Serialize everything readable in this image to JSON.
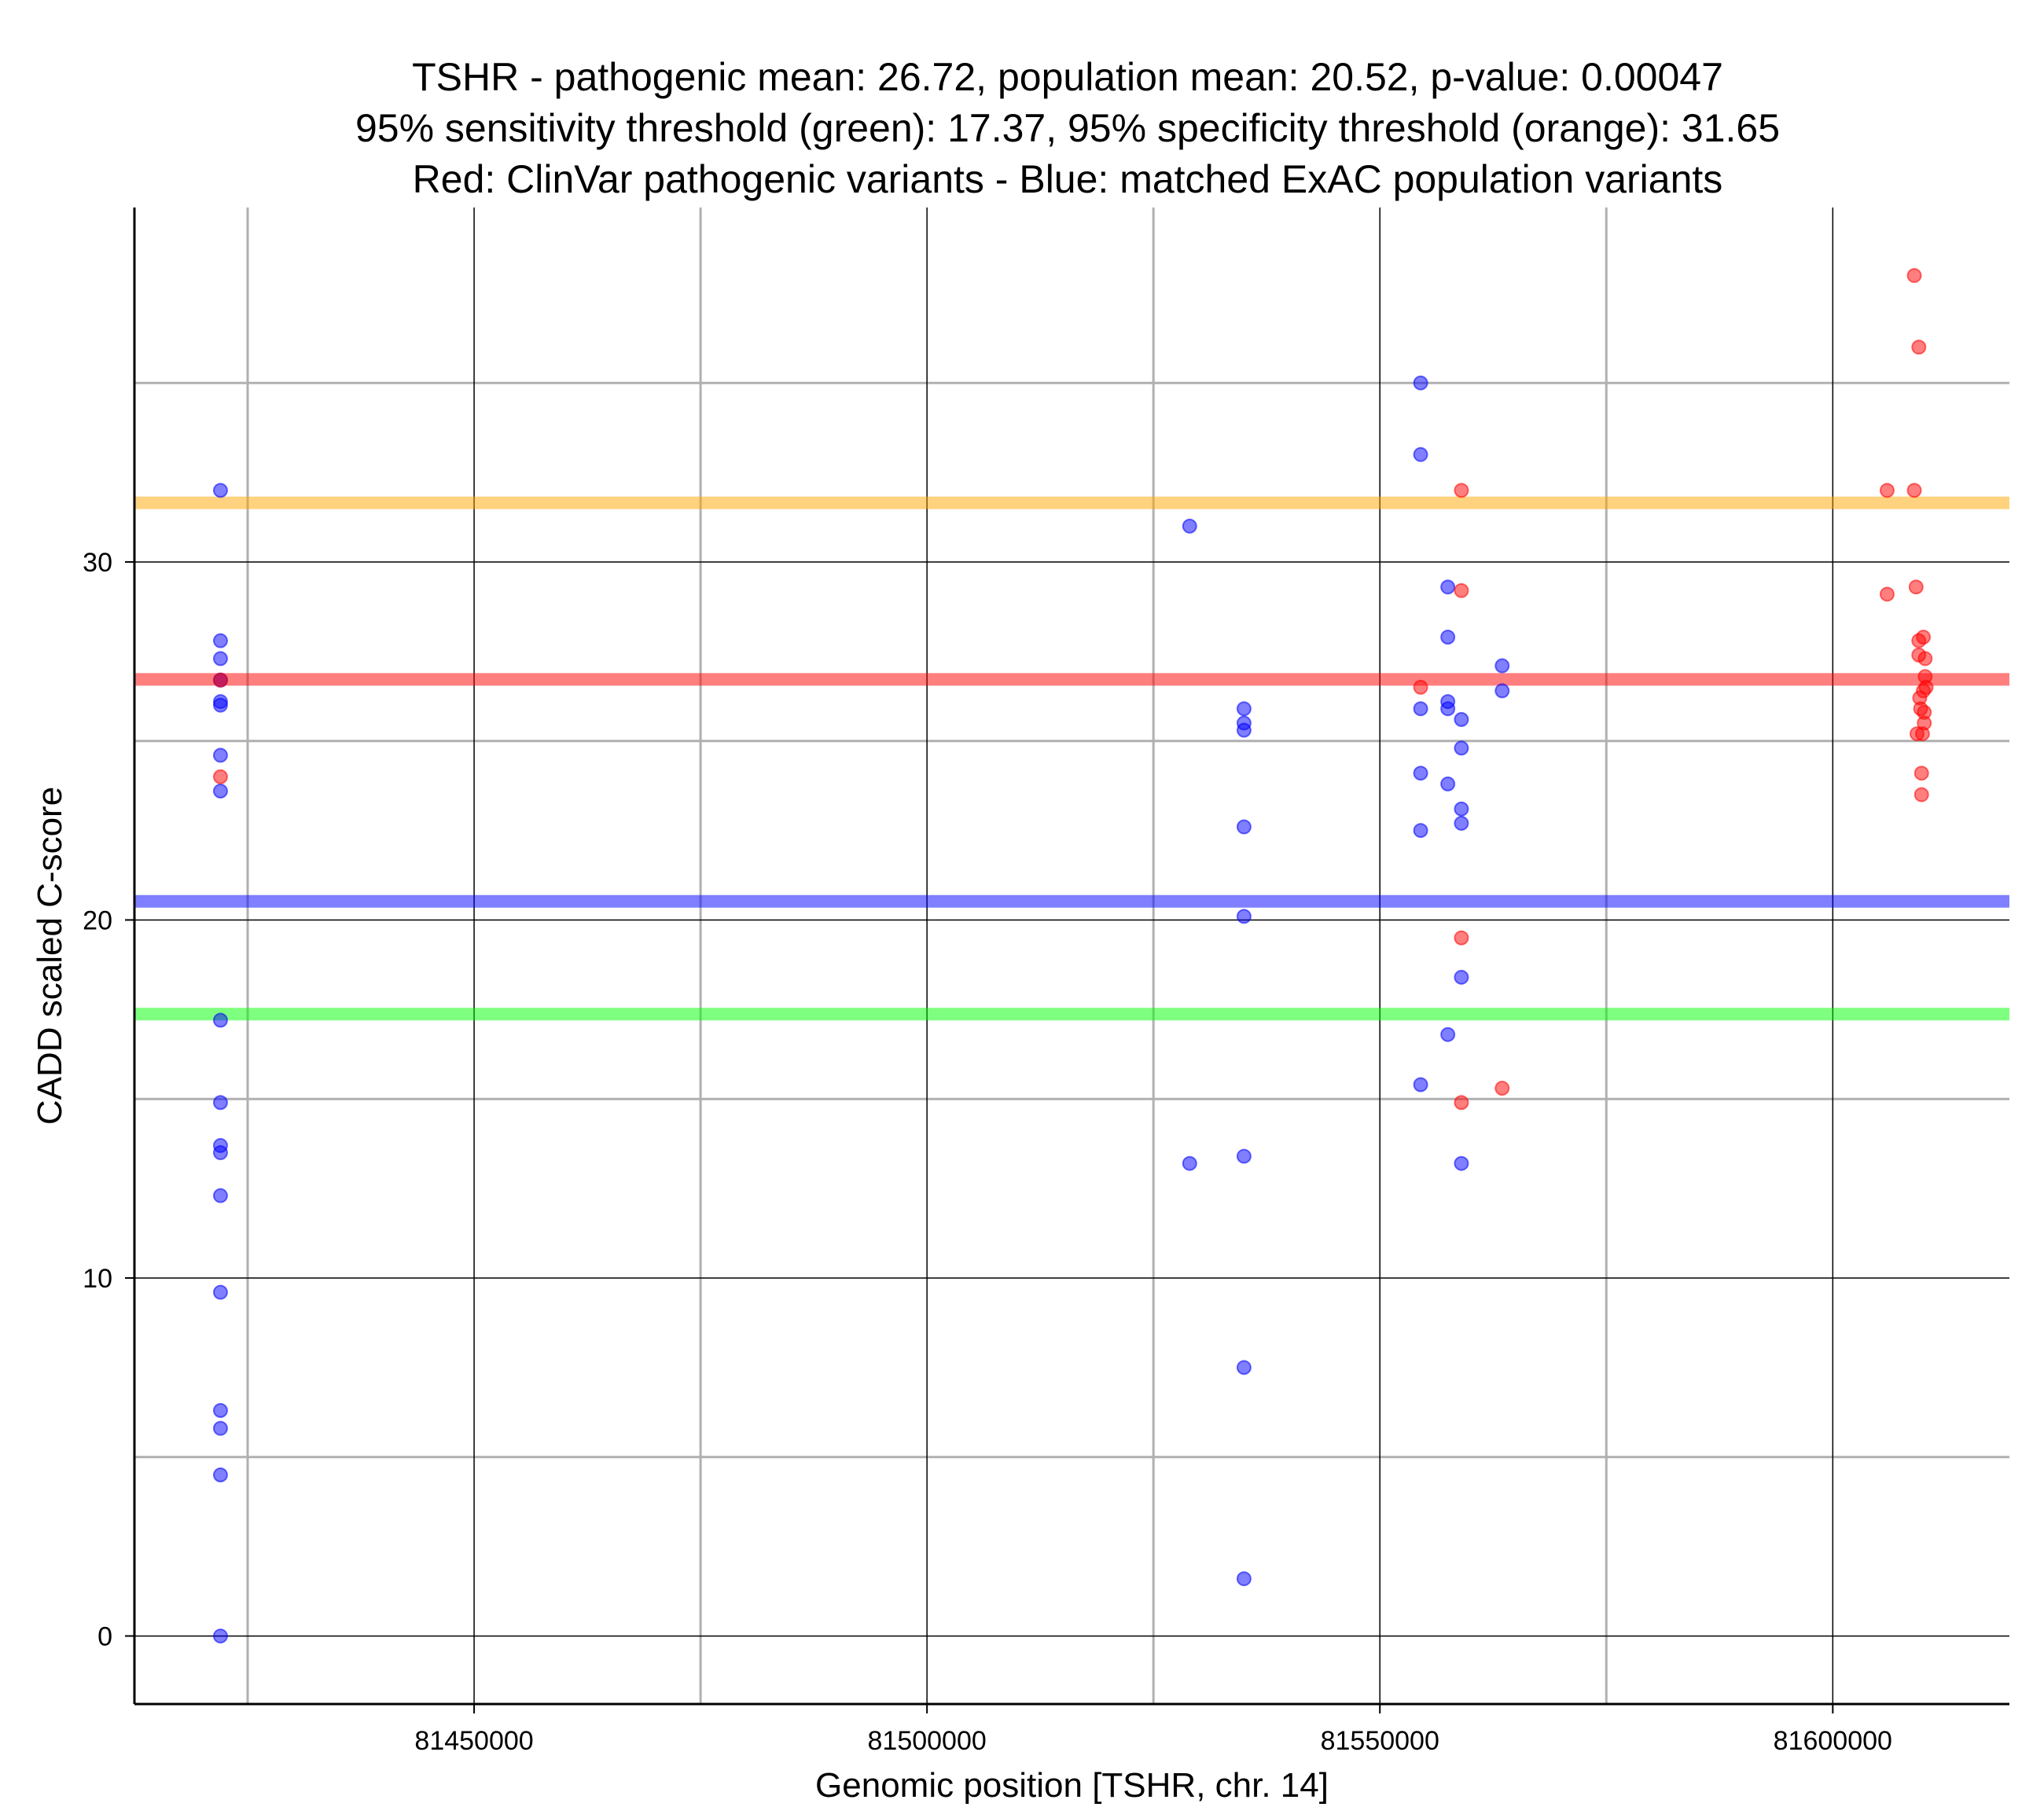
{
  "chart_data": {
    "type": "scatter",
    "title_lines": [
      "TSHR - pathogenic mean: 26.72, population mean: 20.52, p-value: 0.00047",
      "95% sensitivity threshold (green): 17.37, 95% specificity threshold (orange): 31.65",
      "Red: ClinVar pathogenic variants - Blue: matched ExAC population variants"
    ],
    "xlabel": "Genomic position [TSHR, chr. 14]",
    "ylabel": "CADD scaled C-score",
    "xlim": [
      81412500,
      81619500
    ],
    "ylim": [
      -1.9,
      39.9
    ],
    "x_ticks": [
      81450000,
      81500000,
      81550000,
      81600000
    ],
    "x_tick_labels": [
      "81450000",
      "81500000",
      "81550000",
      "81600000"
    ],
    "x_minor_grid": [
      81425000,
      81475000,
      81525000,
      81575000
    ],
    "y_ticks": [
      0,
      10,
      20,
      30
    ],
    "y_tick_labels": [
      "0",
      "10",
      "20",
      "30"
    ],
    "y_minor_grid": [
      5,
      15,
      25,
      35
    ],
    "grid": true,
    "colors": {
      "pathogenic": "#ff0000",
      "population": "#0000ff",
      "pathogenic_mean_line": "#ff0000",
      "population_mean_line": "#0000ff",
      "sensitivity_line": "#00ff00",
      "specificity_line": "#ffa500",
      "major_grid": "#000000",
      "minor_grid": "#b0b0b0"
    },
    "reference_lines": [
      {
        "name": "specificity threshold (orange)",
        "y": 31.65,
        "color_key": "specificity_line"
      },
      {
        "name": "pathogenic mean",
        "y": 26.72,
        "color_key": "pathogenic_mean_line"
      },
      {
        "name": "population mean",
        "y": 20.52,
        "color_key": "population_mean_line"
      },
      {
        "name": "sensitivity threshold (green)",
        "y": 17.37,
        "color_key": "sensitivity_line"
      }
    ],
    "series": [
      {
        "name": "ExAC population variants",
        "color_key": "population",
        "points": [
          [
            81422000,
            32.0
          ],
          [
            81422000,
            27.8
          ],
          [
            81422000,
            27.3
          ],
          [
            81422000,
            26.7
          ],
          [
            81422000,
            26.1
          ],
          [
            81422000,
            26.0
          ],
          [
            81422000,
            24.6
          ],
          [
            81422000,
            23.6
          ],
          [
            81422000,
            17.2
          ],
          [
            81422000,
            14.9
          ],
          [
            81422000,
            13.7
          ],
          [
            81422000,
            13.5
          ],
          [
            81422000,
            12.3
          ],
          [
            81422000,
            9.6
          ],
          [
            81422000,
            6.3
          ],
          [
            81422000,
            5.8
          ],
          [
            81422000,
            4.5
          ],
          [
            81422000,
            0.0
          ],
          [
            81529000,
            31.0
          ],
          [
            81529000,
            13.2
          ],
          [
            81535000,
            25.9
          ],
          [
            81535000,
            25.5
          ],
          [
            81535000,
            25.3
          ],
          [
            81535000,
            22.6
          ],
          [
            81535000,
            20.1
          ],
          [
            81535000,
            13.4
          ],
          [
            81535000,
            7.5
          ],
          [
            81535000,
            1.6
          ],
          [
            81554500,
            35.0
          ],
          [
            81554500,
            33.0
          ],
          [
            81554500,
            25.9
          ],
          [
            81554500,
            24.1
          ],
          [
            81554500,
            22.5
          ],
          [
            81554500,
            15.4
          ],
          [
            81557500,
            29.3
          ],
          [
            81557500,
            27.9
          ],
          [
            81557500,
            26.1
          ],
          [
            81557500,
            25.9
          ],
          [
            81557500,
            23.8
          ],
          [
            81557500,
            16.8
          ],
          [
            81559000,
            25.6
          ],
          [
            81559000,
            24.8
          ],
          [
            81559000,
            23.1
          ],
          [
            81559000,
            22.7
          ],
          [
            81559000,
            18.4
          ],
          [
            81559000,
            13.2
          ],
          [
            81563500,
            27.1
          ],
          [
            81563500,
            26.4
          ]
        ]
      },
      {
        "name": "ClinVar pathogenic variants",
        "color_key": "pathogenic",
        "points": [
          [
            81422000,
            26.7
          ],
          [
            81422000,
            24.0
          ],
          [
            81554500,
            26.5
          ],
          [
            81559000,
            32.0
          ],
          [
            81559000,
            29.2
          ],
          [
            81559000,
            19.5
          ],
          [
            81559000,
            14.9
          ],
          [
            81563500,
            15.3
          ],
          [
            81606000,
            32.0
          ],
          [
            81606000,
            29.1
          ],
          [
            81609000,
            38.0
          ],
          [
            81609000,
            32.0
          ],
          [
            81609200,
            29.3
          ],
          [
            81609300,
            25.2
          ],
          [
            81609500,
            36.0
          ],
          [
            81609500,
            27.8
          ],
          [
            81609500,
            27.4
          ],
          [
            81609600,
            26.2
          ],
          [
            81609700,
            25.9
          ],
          [
            81609800,
            23.5
          ],
          [
            81609800,
            24.1
          ],
          [
            81609900,
            25.2
          ],
          [
            81610000,
            27.9
          ],
          [
            81610000,
            26.4
          ],
          [
            81610100,
            25.8
          ],
          [
            81610100,
            25.5
          ],
          [
            81610200,
            27.3
          ],
          [
            81610200,
            26.8
          ],
          [
            81610300,
            26.5
          ]
        ]
      }
    ]
  }
}
